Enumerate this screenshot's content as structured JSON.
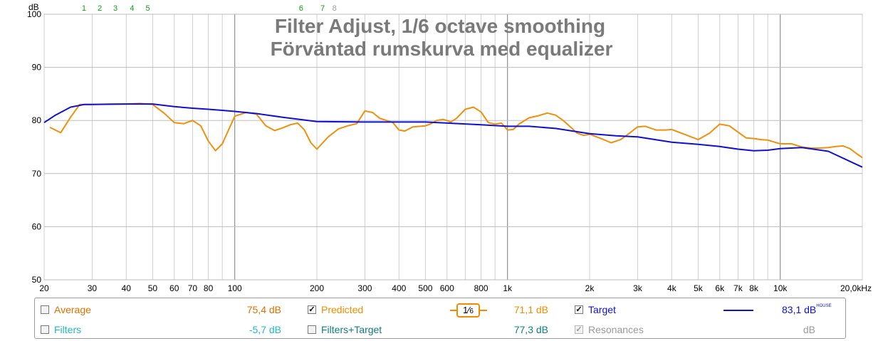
{
  "chart_data": {
    "type": "line",
    "title": "Filter Adjust, 1/6 octave smoothing",
    "subtitle": "Förväntad rumskurva med equalizer",
    "y_unit": "dB",
    "ylim": [
      50,
      100
    ],
    "xlim": [
      20,
      20000
    ],
    "x_scale": "log",
    "y_ticks": [
      100,
      90,
      80,
      70,
      60,
      50
    ],
    "x_ticks": [
      {
        "v": 20,
        "label": "20"
      },
      {
        "v": 30,
        "label": "30"
      },
      {
        "v": 40,
        "label": "40"
      },
      {
        "v": 50,
        "label": "50"
      },
      {
        "v": 60,
        "label": "60"
      },
      {
        "v": 70,
        "label": "70"
      },
      {
        "v": 80,
        "label": "80"
      },
      {
        "v": 100,
        "label": "100"
      },
      {
        "v": 200,
        "label": "200"
      },
      {
        "v": 300,
        "label": "300"
      },
      {
        "v": 400,
        "label": "400"
      },
      {
        "v": 500,
        "label": "500"
      },
      {
        "v": 600,
        "label": "600"
      },
      {
        "v": 800,
        "label": "800"
      },
      {
        "v": 1000,
        "label": "1k"
      },
      {
        "v": 2000,
        "label": "2k"
      },
      {
        "v": 3000,
        "label": "3k"
      },
      {
        "v": 4000,
        "label": "4k"
      },
      {
        "v": 5000,
        "label": "5k"
      },
      {
        "v": 6000,
        "label": "6k"
      },
      {
        "v": 7000,
        "label": "7k"
      },
      {
        "v": 8000,
        "label": "8k"
      },
      {
        "v": 10000,
        "label": "10k"
      },
      {
        "v": 20000,
        "label": "20,0kHz"
      }
    ],
    "filter_markers": [
      {
        "label": "1",
        "freq": 28,
        "active": true
      },
      {
        "label": "2",
        "freq": 32,
        "active": true
      },
      {
        "label": "3",
        "freq": 36.5,
        "active": true
      },
      {
        "label": "4",
        "freq": 42,
        "active": true
      },
      {
        "label": "5",
        "freq": 48,
        "active": true
      },
      {
        "label": "6",
        "freq": 175,
        "active": true
      },
      {
        "label": "7",
        "freq": 210,
        "active": true
      },
      {
        "label": "8",
        "freq": 232,
        "active": false
      }
    ],
    "grid": true,
    "series": [
      {
        "name": "Predicted",
        "color": "#f0900c",
        "x": [
          21,
          23,
          25,
          27,
          30,
          35,
          40,
          45,
          50,
          55,
          60,
          65,
          70,
          75,
          80,
          85,
          90,
          100,
          110,
          120,
          130,
          140,
          150,
          160,
          170,
          180,
          190,
          200,
          220,
          240,
          260,
          280,
          300,
          320,
          340,
          360,
          380,
          400,
          420,
          450,
          480,
          500,
          520,
          550,
          580,
          600,
          620,
          650,
          700,
          750,
          800,
          850,
          900,
          950,
          1000,
          1050,
          1100,
          1200,
          1300,
          1400,
          1500,
          1600,
          1700,
          1800,
          1900,
          2000,
          2200,
          2400,
          2600,
          2800,
          3000,
          3200,
          3500,
          3800,
          4000,
          4500,
          5000,
          5500,
          6000,
          6500,
          7000,
          7500,
          8000,
          8500,
          9000,
          10000,
          11000,
          12000,
          13000,
          14000,
          15000,
          16000,
          17000,
          18000,
          19000,
          20000
        ],
        "y": [
          78.7,
          77.7,
          80.6,
          83.0,
          83.0,
          83.1,
          83.1,
          83.2,
          83.0,
          81.4,
          79.6,
          79.4,
          80.0,
          79.0,
          76.1,
          74.3,
          75.6,
          80.8,
          81.5,
          81.2,
          79.0,
          78.1,
          78.6,
          79.2,
          79.5,
          78.2,
          75.8,
          74.6,
          76.9,
          78.4,
          79.0,
          79.4,
          81.8,
          81.5,
          80.4,
          80.0,
          79.6,
          78.2,
          78.0,
          78.8,
          78.9,
          79.0,
          79.3,
          80.0,
          80.2,
          80.0,
          79.7,
          80.4,
          82.1,
          82.5,
          81.6,
          79.6,
          79.3,
          79.5,
          78.2,
          78.3,
          79.3,
          80.5,
          80.9,
          81.4,
          81.0,
          80.0,
          78.8,
          77.6,
          77.2,
          77.4,
          76.6,
          75.8,
          76.4,
          77.6,
          78.8,
          78.9,
          78.2,
          78.2,
          78.3,
          77.3,
          76.4,
          77.6,
          79.3,
          79.0,
          77.8,
          76.7,
          76.6,
          76.4,
          76.3,
          75.6,
          75.6,
          75.0,
          74.8,
          74.8,
          74.9,
          75.1,
          75.2,
          74.7,
          73.8,
          73.0
        ]
      },
      {
        "name": "Target",
        "color": "#1010d0",
        "x": [
          20,
          22,
          25,
          28,
          30,
          40,
          50,
          60,
          70,
          80,
          90,
          100,
          120,
          150,
          200,
          300,
          500,
          800,
          1000,
          1200,
          1500,
          2000,
          2500,
          3000,
          4000,
          5000,
          6000,
          7000,
          8000,
          9000,
          10000,
          12000,
          15000,
          20000
        ],
        "y": [
          79.6,
          81.0,
          82.5,
          83.0,
          83.0,
          83.1,
          83.1,
          82.6,
          82.3,
          82.1,
          81.9,
          81.7,
          81.3,
          80.6,
          79.8,
          79.7,
          79.7,
          79.2,
          78.9,
          78.9,
          78.5,
          77.5,
          77.1,
          76.9,
          75.9,
          75.5,
          75.1,
          74.6,
          74.3,
          74.4,
          74.7,
          74.9,
          74.2,
          71.2
        ]
      }
    ]
  },
  "legend": {
    "average": {
      "label": "Average",
      "value": "75,4 dB",
      "checked": false
    },
    "predicted": {
      "label": "Predicted",
      "value": "71,1 dB",
      "checked": true
    },
    "smoothing": {
      "num": "1",
      "den": "6"
    },
    "target": {
      "label": "Target",
      "value": "83,1 dB",
      "value_sup": "HOUSE",
      "checked": true
    },
    "filters": {
      "label": "Filters",
      "value": "-5,7 dB",
      "checked": false
    },
    "filters_target": {
      "label": "Filters+Target",
      "value": "77,3 dB",
      "checked": false
    },
    "resonances": {
      "label": "Resonances",
      "value": "dB",
      "checked": true
    },
    "colors": {
      "average": "#e07000",
      "predicted": "#f08c00",
      "target": "#1010d0",
      "filters": "#20b8c8",
      "filters_target": "#108080",
      "resonances": "#9a9a9a"
    }
  }
}
